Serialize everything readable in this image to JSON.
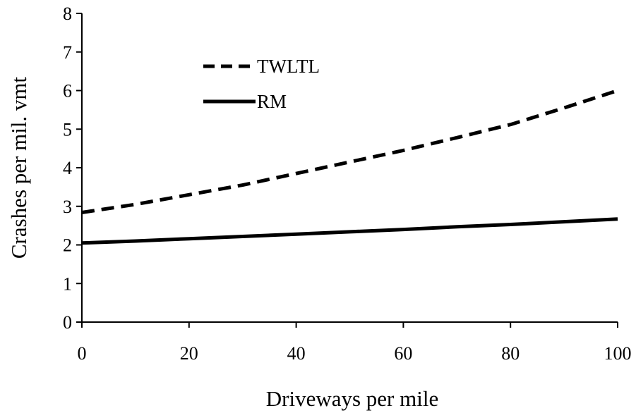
{
  "chart_data": {
    "type": "line",
    "title": "",
    "xlabel": "Driveways  per mile",
    "ylabel": "Crashes  per mil. vmt",
    "xlim": [
      0,
      100
    ],
    "ylim": [
      0,
      8
    ],
    "xticks": [
      "0",
      "20",
      "40",
      "60",
      "80",
      "100"
    ],
    "yticks": [
      "0",
      "1",
      "2",
      "3",
      "4",
      "5",
      "6",
      "7",
      "8"
    ],
    "grid": false,
    "legend_position": "top-left",
    "series": [
      {
        "name": "TWLTL",
        "style": "dashed",
        "color": "#000000",
        "x": [
          0,
          10,
          20,
          30,
          40,
          50,
          60,
          70,
          80,
          90,
          100
        ],
        "y": [
          2.84,
          3.05,
          3.3,
          3.55,
          3.85,
          4.15,
          4.45,
          4.78,
          5.12,
          5.55,
          6.0
        ]
      },
      {
        "name": "RM",
        "style": "solid",
        "color": "#000000",
        "x": [
          0,
          10,
          20,
          30,
          40,
          50,
          60,
          70,
          80,
          90,
          100
        ],
        "y": [
          2.05,
          2.1,
          2.16,
          2.22,
          2.28,
          2.34,
          2.4,
          2.47,
          2.53,
          2.6,
          2.67
        ]
      }
    ]
  }
}
